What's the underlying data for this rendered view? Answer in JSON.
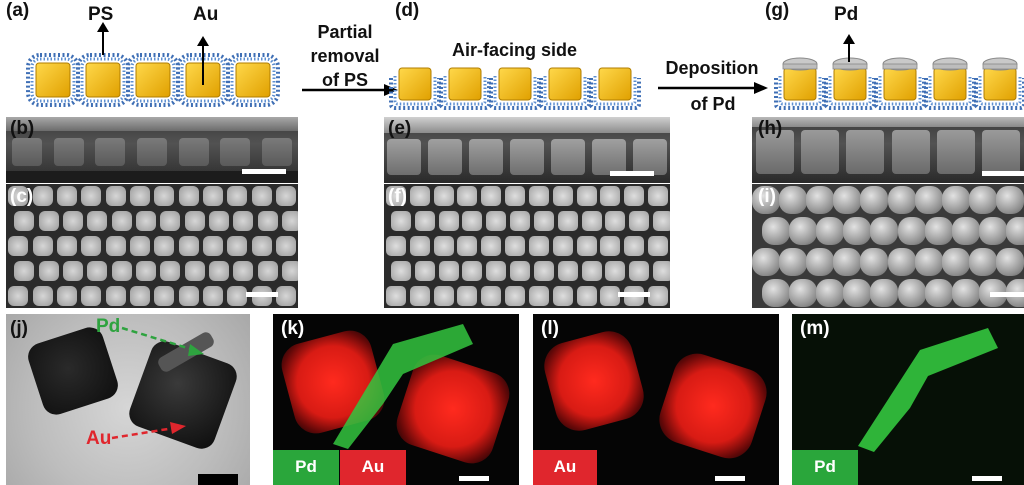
{
  "panels": {
    "a": "(a)",
    "b": "(b)",
    "c": "(c)",
    "d": "(d)",
    "e": "(e)",
    "f": "(f)",
    "g": "(g)",
    "h": "(h)",
    "i": "(i)",
    "j": "(j)",
    "k": "(k)",
    "l": "(l)",
    "m": "(m)"
  },
  "schematic": {
    "ps_label": "PS",
    "au_label": "Au",
    "pd_label": "Pd",
    "air_facing_label": "Air-facing side",
    "step1": [
      "Partial",
      "removal",
      "of PS"
    ],
    "step2": [
      "Deposition",
      "of Pd"
    ]
  },
  "tem": {
    "pd_arrow_label": "Pd",
    "au_arrow_label": "Au"
  },
  "eds": {
    "k_legend": [
      "Pd",
      "Au"
    ],
    "l_legend": "Au",
    "m_legend": "Pd"
  },
  "colors": {
    "au": "#f2b705",
    "pd_cap": "#b8b8b8",
    "ps_brush": "#3f6fb5",
    "eds_au": "#e8241d",
    "eds_pd": "#2fbf3a",
    "chip_green": "#2aa63b",
    "chip_red": "#e0262d"
  },
  "icons": [
    "up-arrow-icon",
    "right-arrow-icon",
    "dashed-arrow-icon",
    "nanocube-icon"
  ]
}
